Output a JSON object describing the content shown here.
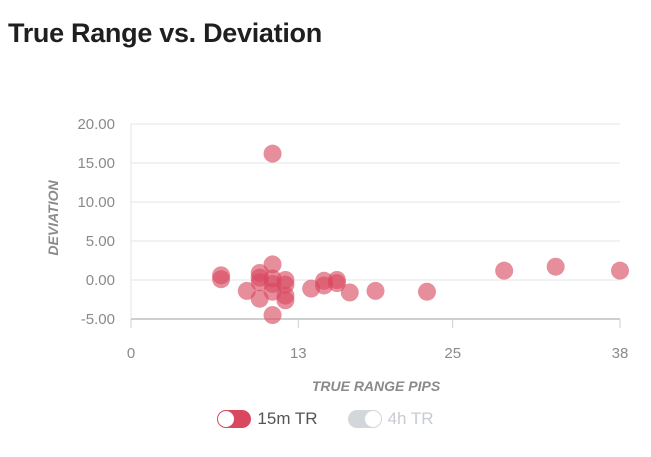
{
  "title": "True Range vs. Deviation",
  "legend": {
    "items": [
      {
        "label": "15m TR",
        "color": "#d9485f",
        "active": true
      },
      {
        "label": "4h TR",
        "color": "#d3d6da",
        "active": false
      }
    ]
  },
  "chart_data": {
    "type": "scatter",
    "xlabel": "TRUE RANGE PIPS",
    "ylabel": "DEVIATION",
    "xlim": [
      0,
      38
    ],
    "ylim": [
      -5,
      20
    ],
    "x_ticks": [
      "0",
      "13",
      "25",
      "38"
    ],
    "y_ticks": [
      "20.00",
      "15.00",
      "10.00",
      "5.00",
      "0.00",
      "-5.00"
    ],
    "grid": true,
    "legend_position": "bottom",
    "series": [
      {
        "name": "15m TR",
        "color": "#d9485f",
        "points": [
          [
            11,
            16.2
          ],
          [
            7,
            0.6
          ],
          [
            7,
            0.1
          ],
          [
            9,
            -1.4
          ],
          [
            10,
            0.9
          ],
          [
            10,
            0.3
          ],
          [
            10,
            -0.3
          ],
          [
            10,
            -2.4
          ],
          [
            11,
            2.0
          ],
          [
            11,
            0.2
          ],
          [
            11,
            -0.5
          ],
          [
            11,
            -1.5
          ],
          [
            11,
            -4.5
          ],
          [
            12,
            0.0
          ],
          [
            12,
            -0.6
          ],
          [
            12,
            -2.0
          ],
          [
            12,
            -2.6
          ],
          [
            14,
            -1.1
          ],
          [
            15,
            -0.1
          ],
          [
            15,
            -0.7
          ],
          [
            16,
            0.0
          ],
          [
            16,
            -0.4
          ],
          [
            17,
            -1.6
          ],
          [
            19,
            -1.4
          ],
          [
            23,
            -1.5
          ],
          [
            29,
            1.2
          ],
          [
            33,
            1.7
          ],
          [
            38,
            1.2
          ]
        ]
      }
    ]
  }
}
